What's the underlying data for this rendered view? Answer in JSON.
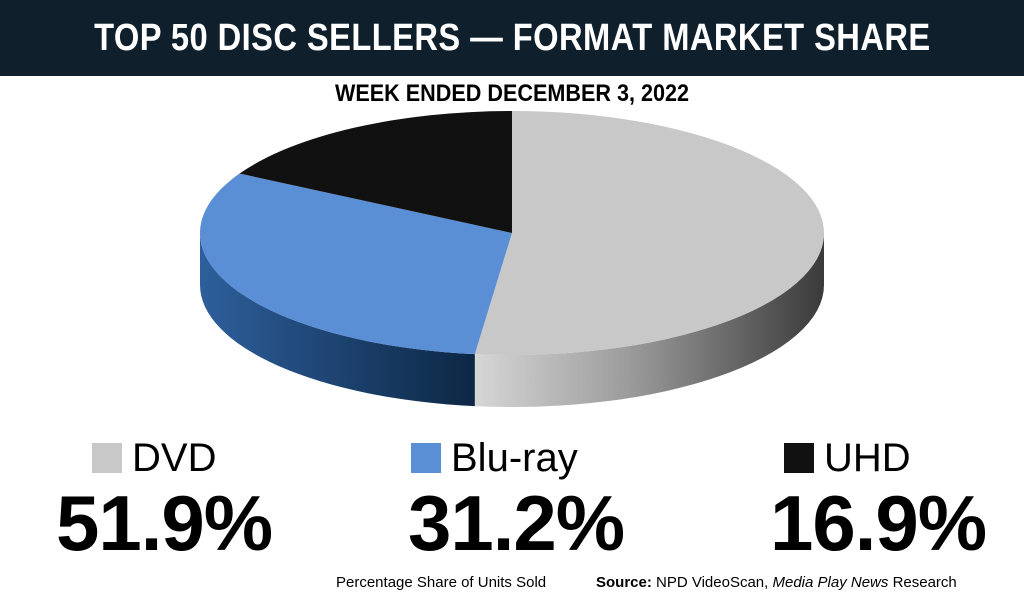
{
  "title": "TOP 50 DISC SELLERS — FORMAT MARKET SHARE",
  "subtitle": "WEEK ENDED DECEMBER 3, 2022",
  "chart_data": {
    "type": "pie",
    "title": "TOP 50 DISC SELLERS — FORMAT MARKET SHARE",
    "subtitle": "WEEK ENDED DECEMBER 3, 2022",
    "categories": [
      "DVD",
      "Blu-ray",
      "UHD"
    ],
    "values": [
      51.9,
      31.2,
      16.9
    ],
    "value_labels": [
      "51.9%",
      "31.2%",
      "16.9%"
    ],
    "colors": [
      "#c8c8c8",
      "#5a8fd6",
      "#111111"
    ],
    "style": "3d"
  },
  "legend": {
    "dvd": {
      "label": "DVD",
      "pct": "51.9%",
      "color": "#c8c8c8"
    },
    "bluray": {
      "label": "Blu-ray",
      "pct": "31.2%",
      "color": "#5a8fd6"
    },
    "uhd": {
      "label": "UHD",
      "pct": "16.9%",
      "color": "#111111"
    }
  },
  "footer": {
    "note": "Percentage Share of Units Sold",
    "source_label": "Source:",
    "source_text": "NPD VideoScan,",
    "source_pub": "Media Play News",
    "source_tail": "Research"
  }
}
